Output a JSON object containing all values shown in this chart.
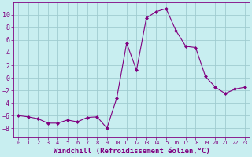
{
  "x": [
    0,
    1,
    2,
    3,
    4,
    5,
    6,
    7,
    8,
    9,
    10,
    11,
    12,
    13,
    14,
    15,
    16,
    17,
    18,
    19,
    20,
    21,
    22,
    23
  ],
  "y": [
    -6,
    -6.2,
    -6.5,
    -7.2,
    -7.2,
    -6.7,
    -7.0,
    -6.3,
    -6.2,
    -8.0,
    -3.2,
    5.5,
    1.2,
    9.5,
    10.5,
    11.0,
    7.5,
    5.0,
    4.8,
    0.2,
    -1.5,
    -2.5,
    -1.8,
    -1.5
  ],
  "line_color": "#800080",
  "marker": "D",
  "marker_size": 2.0,
  "bg_color": "#c8eef0",
  "grid_color": "#a0ccd0",
  "xlabel": "Windchill (Refroidissement éolien,°C)",
  "xlabel_fontsize": 6.5,
  "tick_color": "#800080",
  "label_color": "#800080",
  "ylim": [
    -9.5,
    12
  ],
  "xlim": [
    -0.5,
    23.5
  ],
  "yticks": [
    -8,
    -6,
    -4,
    -2,
    0,
    2,
    4,
    6,
    8,
    10
  ],
  "xticks": [
    0,
    1,
    2,
    3,
    4,
    5,
    6,
    7,
    8,
    9,
    10,
    11,
    12,
    13,
    14,
    15,
    16,
    17,
    18,
    19,
    20,
    21,
    22,
    23
  ]
}
